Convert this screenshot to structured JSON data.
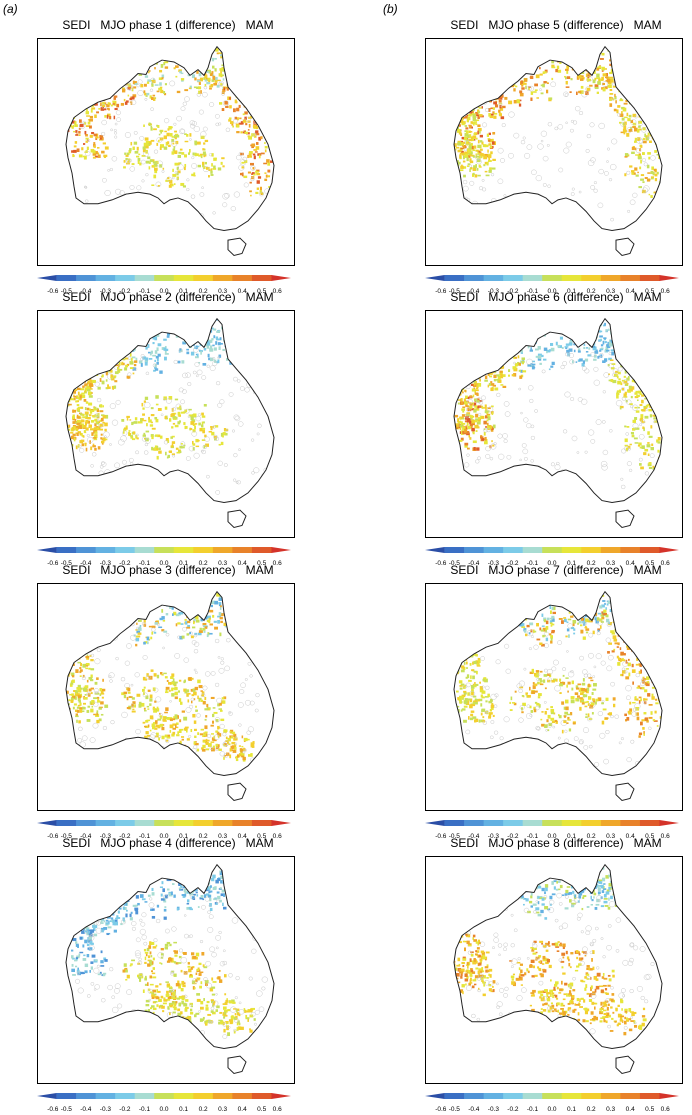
{
  "labels": {
    "a": "(a)",
    "b": "(b)"
  },
  "colorbar": {
    "ticks": [
      "-0.6",
      "-0.5",
      "-0.4",
      "-0.3",
      "-0.2",
      "-0.1",
      "0.0",
      "0.1",
      "0.2",
      "0.3",
      "0.4",
      "0.5",
      "0.6"
    ],
    "colors": [
      "#2b4ea6",
      "#3a6fc4",
      "#4f93d6",
      "#63b1e2",
      "#7ccbe8",
      "#a8dcd2",
      "#c7e05a",
      "#e6e63a",
      "#f3cf2e",
      "#efa72a",
      "#e8822a",
      "#df5a2a",
      "#d4332a"
    ]
  },
  "panels": [
    {
      "title": "SEDI   MJO phase 1 (difference)   MAM",
      "phase": 1
    },
    {
      "title": "SEDI   MJO phase 2 (difference)   MAM",
      "phase": 2
    },
    {
      "title": "SEDI   MJO phase 3 (difference)   MAM",
      "phase": 3
    },
    {
      "title": "SEDI   MJO phase 4 (difference)   MAM",
      "phase": 4
    },
    {
      "title": "SEDI   MJO phase 5 (difference)   MAM",
      "phase": 5
    },
    {
      "title": "SEDI   MJO phase 6 (difference)   MAM",
      "phase": 6
    },
    {
      "title": "SEDI   MJO phase 7 (difference)   MAM",
      "phase": 7
    },
    {
      "title": "SEDI   MJO phase 8 (difference)   MAM",
      "phase": 8
    }
  ]
}
